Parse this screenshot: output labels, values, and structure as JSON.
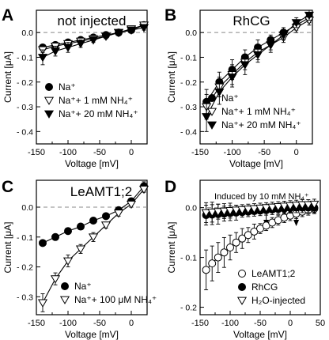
{
  "chart_data": [
    {
      "panel_letter": "A",
      "type": "line",
      "title": "not injected",
      "xlabel": "Voltage [mV]",
      "ylabel": "Current [μA]",
      "xlim": [
        -150,
        25
      ],
      "ylim": [
        -0.45,
        0.09
      ],
      "xticks": [
        -150,
        -100,
        -50,
        0
      ],
      "yticks": [
        0.0,
        -0.1,
        -0.2,
        -0.3,
        -0.4
      ],
      "ytick_labels": [
        "0.0",
        "- 0.1",
        "- 0.2",
        "- 0.3",
        "- 0.4"
      ],
      "zero_line": true,
      "legend_position": "bottom-left",
      "series": [
        {
          "name": "Na⁺",
          "marker": "circle-filled",
          "x": [
            -140,
            -120,
            -100,
            -80,
            -60,
            -40,
            -20,
            0,
            20
          ],
          "y": [
            -0.06,
            -0.05,
            -0.04,
            -0.03,
            -0.02,
            -0.01,
            0.0,
            0.01,
            0.03
          ],
          "err": [
            0.01,
            0.01,
            0.01,
            0.01,
            0.01,
            0.01,
            0.01,
            0.01,
            0.01
          ]
        },
        {
          "name": "Na⁺+ 1 mM NH₄⁺",
          "marker": "triangle-down-open",
          "x": [
            -140,
            -120,
            -100,
            -80,
            -60,
            -40,
            -20,
            0,
            20
          ],
          "y": [
            -0.07,
            -0.055,
            -0.045,
            -0.035,
            -0.025,
            -0.015,
            0.0,
            0.015,
            0.03
          ],
          "err": [
            0.01,
            0.01,
            0.01,
            0.01,
            0.01,
            0.01,
            0.01,
            0.01,
            0.01
          ]
        },
        {
          "name": "Na⁺+ 20 mM NH₄⁺",
          "marker": "triangle-down-filled",
          "x": [
            -140,
            -120,
            -100,
            -80,
            -60,
            -40,
            -20,
            0,
            20
          ],
          "y": [
            -0.1,
            -0.075,
            -0.06,
            -0.045,
            -0.03,
            -0.015,
            0.0,
            0.01,
            0.02
          ],
          "err": [
            0.03,
            0.02,
            0.02,
            0.015,
            0.01,
            0.01,
            0.01,
            0.01,
            0.01
          ]
        }
      ]
    },
    {
      "panel_letter": "B",
      "type": "line",
      "title": "RhCG",
      "xlabel": "Voltage [mV]",
      "ylabel": "Current [μA]",
      "xlim": [
        -150,
        25
      ],
      "ylim": [
        -0.45,
        0.09
      ],
      "xticks": [
        -150,
        -100,
        -50,
        0
      ],
      "yticks": [
        0.0,
        -0.1,
        -0.2,
        -0.3,
        -0.4
      ],
      "ytick_labels": [
        "0.0",
        "- 0.1",
        "- 0.2",
        "- 0.3",
        "- 0.4"
      ],
      "zero_line": true,
      "legend_position": "bottom-right",
      "series": [
        {
          "name": "Na⁺",
          "marker": "circle-filled",
          "x": [
            -140,
            -120,
            -100,
            -80,
            -60,
            -40,
            -20,
            0,
            20
          ],
          "y": [
            -0.28,
            -0.2,
            -0.15,
            -0.1,
            -0.06,
            -0.03,
            0.0,
            0.03,
            0.06
          ],
          "err": [
            0.05,
            0.04,
            0.04,
            0.03,
            0.03,
            0.02,
            0.02,
            0.02,
            0.02
          ]
        },
        {
          "name": "Na⁺+ 1 mM NH₄⁺",
          "marker": "triangle-down-open",
          "x": [
            -140,
            -120,
            -100,
            -80,
            -60,
            -40,
            -20,
            0,
            20
          ],
          "y": [
            -0.3,
            -0.22,
            -0.17,
            -0.12,
            -0.08,
            -0.05,
            -0.02,
            0.02,
            0.05
          ],
          "err": [
            0.05,
            0.04,
            0.04,
            0.03,
            0.03,
            0.02,
            0.02,
            0.02,
            0.02
          ]
        },
        {
          "name": "Na⁺+ 20 mM NH₄⁺",
          "marker": "triangle-down-filled",
          "x": [
            -140,
            -120,
            -100,
            -80,
            -60,
            -40,
            -20,
            0,
            20
          ],
          "y": [
            -0.34,
            -0.24,
            -0.18,
            -0.13,
            -0.09,
            -0.05,
            -0.01,
            0.04,
            0.07
          ],
          "err": [
            0.06,
            0.05,
            0.04,
            0.04,
            0.03,
            0.03,
            0.02,
            0.02,
            0.02
          ]
        }
      ]
    },
    {
      "panel_letter": "C",
      "type": "line",
      "title": "LeAMT1;2",
      "xlabel": "Voltage [mV]",
      "ylabel": "Current [μA]",
      "xlim": [
        -150,
        25
      ],
      "ylim": [
        -0.36,
        0.09
      ],
      "xticks": [
        -150,
        -100,
        -50,
        0
      ],
      "yticks": [
        0.0,
        -0.1,
        -0.2,
        -0.3
      ],
      "ytick_labels": [
        "0.0",
        "- 0.1",
        "- 0.2",
        "- 0.3"
      ],
      "zero_line": true,
      "legend_position": "bottom-right",
      "series": [
        {
          "name": "Na⁺",
          "marker": "circle-filled",
          "x": [
            -140,
            -120,
            -100,
            -80,
            -60,
            -40,
            -20,
            0,
            20
          ],
          "y": [
            -0.12,
            -0.1,
            -0.08,
            -0.065,
            -0.045,
            -0.03,
            -0.01,
            0.02,
            0.07
          ],
          "err": [
            0.01,
            0.01,
            0.01,
            0.01,
            0.01,
            0.01,
            0.01,
            0.01,
            0.015
          ]
        },
        {
          "name": "Na⁺+ 100 μM NH₄⁺",
          "marker": "triangle-down-open",
          "x": [
            -140,
            -120,
            -100,
            -80,
            -60,
            -40,
            -20,
            0,
            20
          ],
          "y": [
            -0.32,
            -0.24,
            -0.18,
            -0.14,
            -0.1,
            -0.06,
            -0.02,
            0.01,
            0.06
          ],
          "err": [
            0.03,
            0.02,
            0.02,
            0.015,
            0.015,
            0.01,
            0.01,
            0.01,
            0.01
          ]
        }
      ]
    },
    {
      "panel_letter": "D",
      "type": "line",
      "title": "",
      "xlabel": "Voltage [mV]",
      "ylabel": "Current [μA]",
      "xlim": [
        -150,
        50
      ],
      "ylim": [
        -0.215,
        0.055
      ],
      "xticks": [
        -150,
        -100,
        -50,
        0,
        50
      ],
      "yticks": [
        0.0,
        -0.1,
        -0.2
      ],
      "ytick_labels": [
        "0.0",
        "- 0.1",
        "- 0.2"
      ],
      "zero_line": true,
      "legend_position": "bottom-right",
      "annotation": "Induced by 10 mM NH₄⁺",
      "annotation_arrows_x": [
        -40,
        10
      ],
      "series": [
        {
          "name": "LeAMT1;2",
          "marker": "circle-open",
          "x": [
            -140,
            -130,
            -120,
            -110,
            -100,
            -90,
            -80,
            -70,
            -60,
            -50,
            -40,
            -30,
            -20,
            -10,
            0,
            10,
            20,
            30,
            40
          ],
          "y": [
            -0.125,
            -0.112,
            -0.1,
            -0.09,
            -0.08,
            -0.07,
            -0.062,
            -0.055,
            -0.048,
            -0.042,
            -0.036,
            -0.03,
            -0.025,
            -0.02,
            -0.016,
            -0.012,
            -0.008,
            -0.005,
            -0.002
          ],
          "err": [
            0.04,
            0.035,
            0.03,
            0.03,
            0.025,
            0.02,
            0.02,
            0.015,
            0.015,
            0.01,
            0.01,
            0.01,
            0.01,
            0.01,
            0.01,
            0.01,
            0.01,
            0.01,
            0.01
          ]
        },
        {
          "name": "RhCG",
          "marker": "circle-filled",
          "x": [
            -140,
            -130,
            -120,
            -110,
            -100,
            -90,
            -80,
            -70,
            -60,
            -50,
            -40,
            -30,
            -20,
            -10,
            0,
            10,
            20,
            30,
            40
          ],
          "y": [
            -0.015,
            -0.014,
            -0.013,
            -0.012,
            -0.011,
            -0.01,
            -0.009,
            -0.008,
            -0.007,
            -0.006,
            -0.005,
            -0.004,
            -0.003,
            -0.002,
            -0.001,
            0.0,
            0.0,
            0.0,
            0.0
          ],
          "err": [
            0.02,
            0.02,
            0.02,
            0.015,
            0.015,
            0.015,
            0.01,
            0.01,
            0.01,
            0.01,
            0.01,
            0.01,
            0.01,
            0.01,
            0.01,
            0.01,
            0.01,
            0.01,
            0.01
          ]
        },
        {
          "name": "H₂O-injected",
          "marker": "triangle-down-open",
          "x": [
            -140,
            -130,
            -120,
            -110,
            -100,
            -90,
            -80,
            -70,
            -60,
            -50,
            -40,
            -30,
            -20,
            -10,
            0,
            10,
            20,
            30,
            40
          ],
          "y": [
            -0.01,
            -0.009,
            -0.008,
            -0.007,
            -0.006,
            -0.005,
            -0.004,
            -0.003,
            -0.002,
            -0.001,
            0.0,
            0.001,
            0.002,
            0.003,
            0.004,
            0.005,
            0.006,
            0.006,
            0.007
          ],
          "err": [
            0.02,
            0.02,
            0.015,
            0.015,
            0.015,
            0.01,
            0.01,
            0.01,
            0.01,
            0.01,
            0.01,
            0.01,
            0.01,
            0.01,
            0.01,
            0.01,
            0.01,
            0.01,
            0.01
          ]
        }
      ]
    }
  ]
}
